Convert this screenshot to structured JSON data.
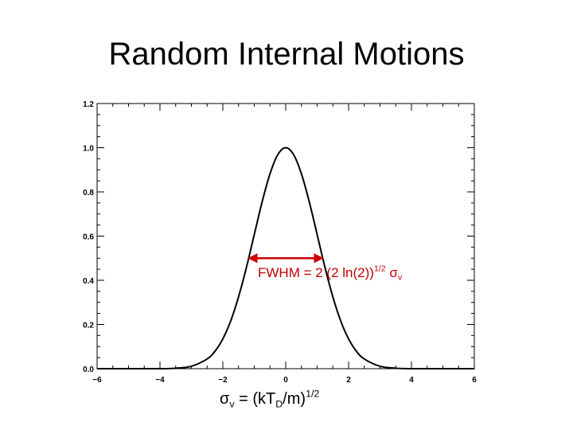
{
  "slide": {
    "title": "Random Internal Motions"
  },
  "annotations": {
    "fwhm_prefix": "FWHM = 2 (2 ln(2))",
    "fwhm_exponent": "1/2",
    "fwhm_symbol": "σ",
    "fwhm_symbol_sub": "v",
    "formula_symbol": "σ",
    "formula_symbol_sub": "v",
    "formula_mid": " = (kT",
    "formula_sub_d": "D",
    "formula_tail": "/m)",
    "formula_exponent": "1/2"
  },
  "colors": {
    "curve": "#000000",
    "fwhm_arrow": "#cc0000",
    "fwhm_text": "#c00000"
  },
  "chart_data": {
    "type": "line",
    "title": "",
    "xlabel": "",
    "ylabel": "",
    "xlim": [
      -6,
      6
    ],
    "ylim": [
      0.0,
      1.2
    ],
    "xticks": [
      -6,
      -4,
      -2,
      0,
      2,
      4,
      6
    ],
    "xtick_labels": [
      "−6",
      "−4",
      "−2",
      "0",
      "2",
      "4",
      "6"
    ],
    "yticks": [
      0.0,
      0.2,
      0.4,
      0.6,
      0.8,
      1.0,
      1.2
    ],
    "ytick_labels": [
      "0.0",
      "0.2",
      "0.4",
      "0.6",
      "0.8",
      "1.0",
      "1.2"
    ],
    "grid": false,
    "series": [
      {
        "x": [
          -6.0,
          -5.5,
          -5.0,
          -4.5,
          -4.0,
          -3.5,
          -3.0,
          -2.5,
          -2.25,
          -2.0,
          -1.75,
          -1.5,
          -1.25,
          -1.0,
          -0.75,
          -0.5,
          -0.25,
          0.0,
          0.25,
          0.5,
          0.75,
          1.0,
          1.25,
          1.5,
          1.75,
          2.0,
          2.25,
          2.5,
          3.0,
          3.5,
          4.0,
          4.5,
          5.0,
          5.5,
          6.0
        ],
        "y": [
          0.0,
          0.0,
          0.0,
          0.0,
          0.0,
          0.002,
          0.011,
          0.044,
          0.079,
          0.135,
          0.216,
          0.325,
          0.458,
          0.607,
          0.755,
          0.882,
          0.969,
          1.0,
          0.969,
          0.882,
          0.755,
          0.607,
          0.458,
          0.325,
          0.216,
          0.135,
          0.079,
          0.044,
          0.011,
          0.002,
          0.0,
          0.0,
          0.0,
          0.0,
          0.0
        ]
      }
    ],
    "fwhm_marker": {
      "x_start": -1.18,
      "x_end": 1.18,
      "y": 0.5
    }
  }
}
